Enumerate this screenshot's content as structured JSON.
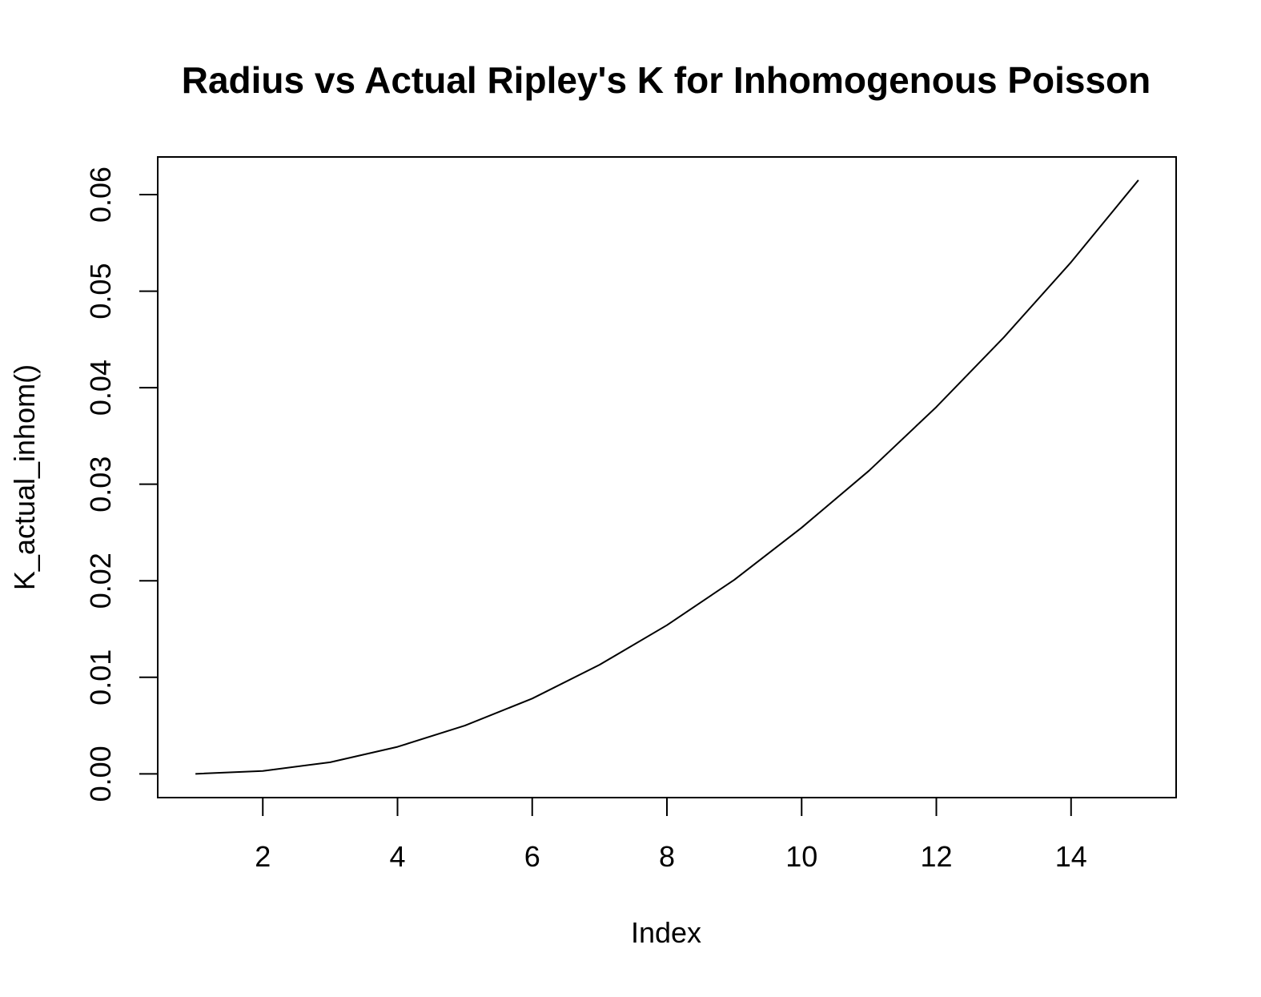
{
  "chart_data": {
    "type": "line",
    "title": "Radius vs Actual Ripley's K for Inhomogenous Poisson",
    "xlabel": "Index",
    "ylabel": "K_actual_inhom()",
    "x": [
      1,
      2,
      3,
      4,
      5,
      6,
      7,
      8,
      9,
      10,
      11,
      12,
      13,
      14,
      15
    ],
    "series": [
      {
        "values": [
          0.0,
          0.0003,
          0.0012,
          0.0028,
          0.005,
          0.0078,
          0.0113,
          0.0154,
          0.0201,
          0.0255,
          0.0314,
          0.038,
          0.0452,
          0.053,
          0.0615
        ]
      }
    ],
    "xlim": [
      0.44,
      15.56
    ],
    "ylim": [
      -0.00246,
      0.0639
    ],
    "x_ticks": [
      2,
      4,
      6,
      8,
      10,
      12,
      14
    ],
    "x_tick_labels": [
      "2",
      "4",
      "6",
      "8",
      "10",
      "12",
      "14"
    ],
    "y_ticks": [
      0.0,
      0.01,
      0.02,
      0.03,
      0.04,
      0.05,
      0.06
    ],
    "y_tick_labels": [
      "0.00",
      "0.01",
      "0.02",
      "0.03",
      "0.04",
      "0.05",
      "0.06"
    ],
    "grid": false,
    "line_color": "#000000",
    "background": "#ffffff"
  }
}
